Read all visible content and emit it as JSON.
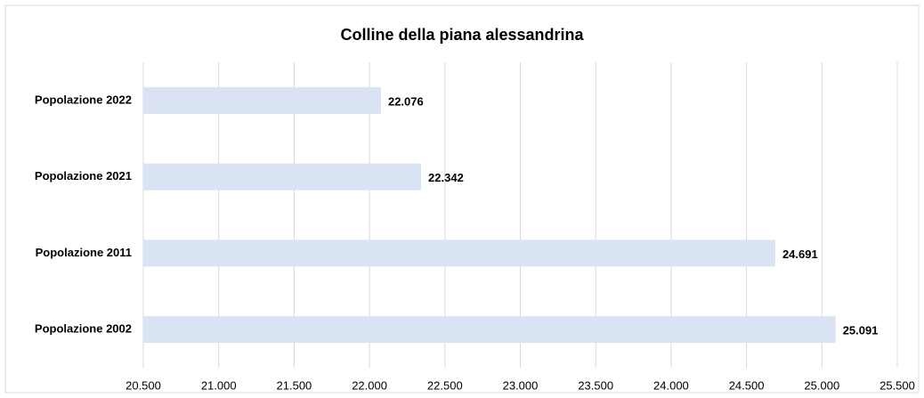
{
  "chart_data": {
    "type": "bar",
    "orientation": "horizontal",
    "title": "Colline della piana alessandrina",
    "categories": [
      "Popolazione 2022",
      "Popolazione 2021",
      "Popolazione 2011",
      "Popolazione 2002"
    ],
    "values": [
      22076,
      22342,
      24691,
      25091
    ],
    "value_labels": [
      "22.076",
      "22.342",
      "24.691",
      "25.091"
    ],
    "color": "#dae3f3",
    "xlim": [
      20500,
      25500
    ],
    "xticks": [
      {
        "value": 20500,
        "label": "20.500"
      },
      {
        "value": 21000,
        "label": "21.000"
      },
      {
        "value": 21500,
        "label": "21.500"
      },
      {
        "value": 22000,
        "label": "22.000"
      },
      {
        "value": 22500,
        "label": "22.500"
      },
      {
        "value": 23000,
        "label": "23.000"
      },
      {
        "value": 23500,
        "label": "23.500"
      },
      {
        "value": 24000,
        "label": "24.000"
      },
      {
        "value": 24500,
        "label": "24.500"
      },
      {
        "value": 25000,
        "label": "25.000"
      },
      {
        "value": 25500,
        "label": "25.500"
      }
    ],
    "grid": true
  }
}
